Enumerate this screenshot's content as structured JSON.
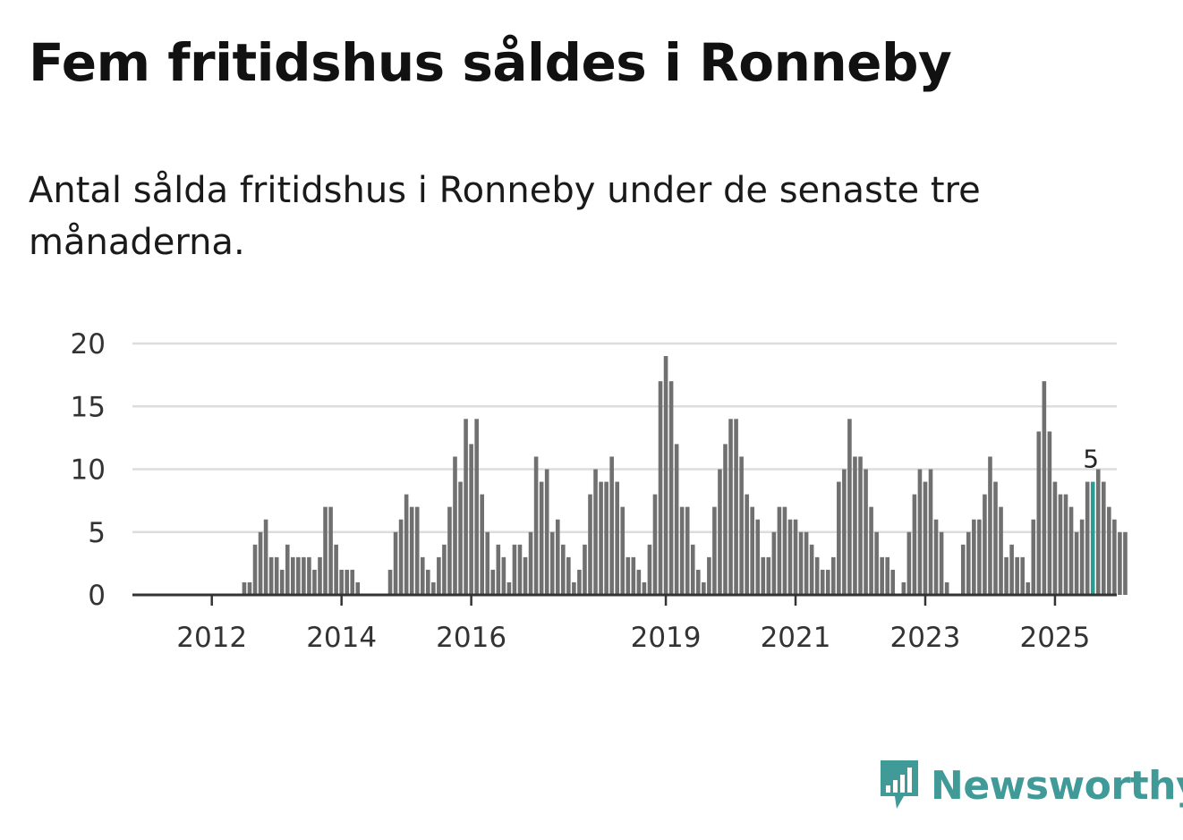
{
  "title": "Fem fritidshus såldes i Ronneby",
  "subtitle": "Antal sålda fritidshus i Ronneby under de senaste tre månaderna.",
  "brand": {
    "name": "Newsworthy",
    "icon": "newsworthy-logo-icon"
  },
  "colors": {
    "bar": "#707070",
    "highlight": "#2a9d92",
    "grid": "#dddddd",
    "axis": "#333333",
    "brand": "#3f9a98"
  },
  "chart_data": {
    "type": "bar",
    "title": "Antal sålda fritidshus",
    "xlabel": "",
    "ylabel": "",
    "ylim": [
      0,
      20
    ],
    "yticks": [
      0,
      5,
      10,
      15,
      20
    ],
    "xticks": [
      {
        "label": "2012",
        "index": 5
      },
      {
        "label": "2014",
        "index": 29
      },
      {
        "label": "2016",
        "index": 53
      },
      {
        "label": "2019",
        "index": 89
      },
      {
        "label": "2021",
        "index": 113
      },
      {
        "label": "2023",
        "index": 137
      },
      {
        "label": "2025",
        "index": 161
      }
    ],
    "start": "2011-08",
    "end": "2025-08",
    "values": [
      0,
      0,
      0,
      0,
      0,
      0,
      0,
      0,
      0,
      0,
      0,
      1,
      1,
      4,
      5,
      6,
      3,
      3,
      2,
      4,
      3,
      3,
      3,
      3,
      2,
      3,
      7,
      7,
      4,
      2,
      2,
      2,
      1,
      0,
      0,
      0,
      0,
      0,
      2,
      5,
      6,
      8,
      7,
      7,
      3,
      2,
      1,
      3,
      4,
      7,
      11,
      9,
      14,
      12,
      14,
      8,
      5,
      2,
      4,
      3,
      1,
      4,
      4,
      3,
      5,
      11,
      9,
      10,
      5,
      6,
      4,
      3,
      1,
      2,
      4,
      8,
      10,
      9,
      9,
      11,
      9,
      7,
      3,
      3,
      2,
      1,
      4,
      8,
      17,
      19,
      17,
      12,
      7,
      7,
      4,
      2,
      1,
      3,
      7,
      10,
      12,
      14,
      14,
      11,
      8,
      7,
      6,
      3,
      3,
      5,
      7,
      7,
      6,
      6,
      5,
      5,
      4,
      3,
      2,
      2,
      3,
      9,
      10,
      14,
      11,
      11,
      10,
      7,
      5,
      3,
      3,
      2,
      0,
      1,
      5,
      8,
      10,
      9,
      10,
      6,
      5,
      1,
      0,
      0,
      4,
      5,
      6,
      6,
      8,
      11,
      9,
      7,
      3,
      4,
      3,
      3,
      1,
      6,
      13,
      17,
      13,
      9,
      8,
      8,
      7,
      5,
      6,
      9,
      9,
      10,
      9,
      7,
      6,
      5,
      5
    ],
    "highlight_index": 168,
    "highlight_label": "5"
  }
}
